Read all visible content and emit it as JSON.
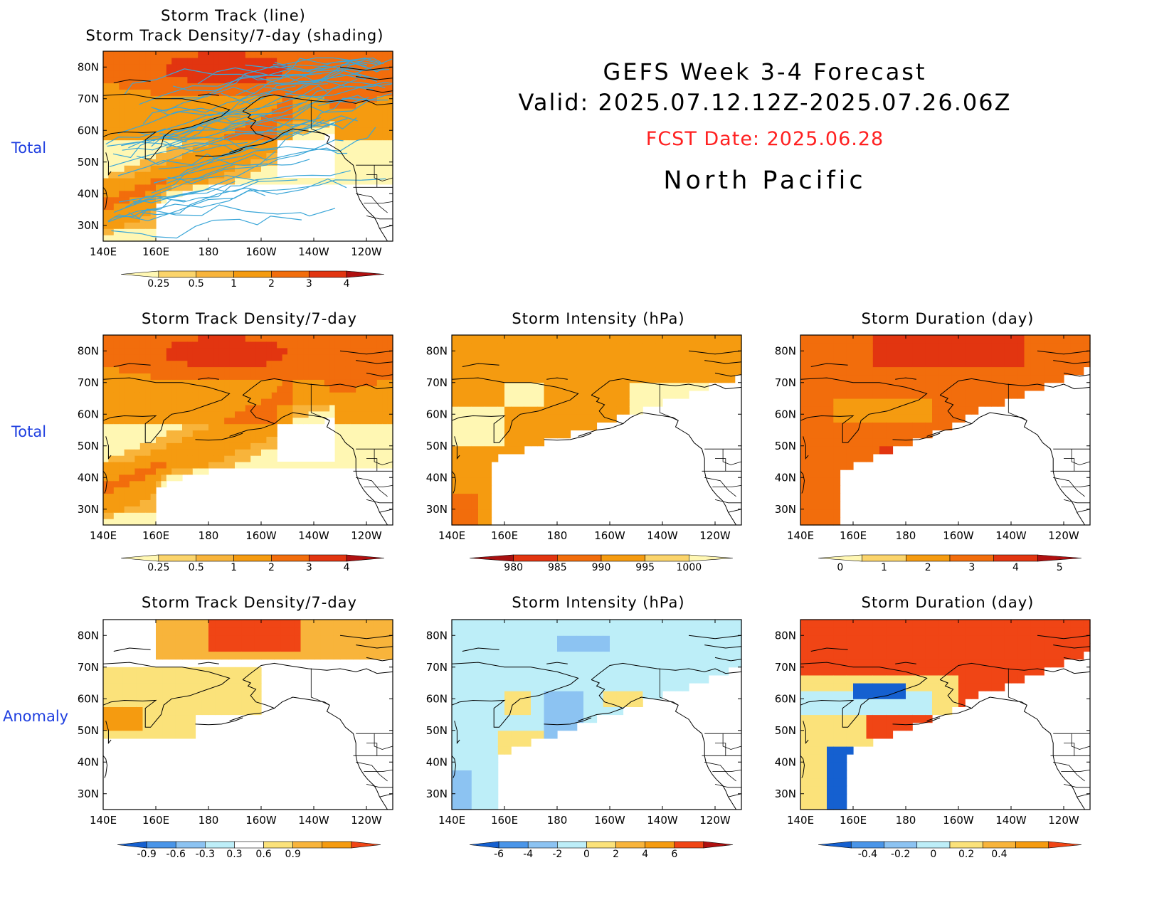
{
  "header": {
    "title": "GEFS Week 3-4 Forecast",
    "valid": "Valid: 2025.07.12.12Z-2025.07.26.06Z",
    "fcst_date": "FCST Date: 2025.06.28",
    "region": "North Pacific",
    "title_color": "#000000",
    "fcst_color": "#ff2020"
  },
  "row_labels": {
    "row0": "Total",
    "row1": "Total",
    "row2": "Anomaly"
  },
  "axes": {
    "lon_ticks": [
      "140E",
      "160E",
      "180",
      "160W",
      "140W",
      "120W"
    ],
    "lat_ticks": [
      "80N",
      "70N",
      "60N",
      "50N",
      "40N",
      "30N"
    ],
    "lon_range": [
      140,
      250
    ],
    "lat_range": [
      25,
      85
    ]
  },
  "panels": {
    "p0": {
      "title_line1": "Storm Track (line)",
      "title_line2": "Storm Track Density/7-day (shading)"
    },
    "p1": {
      "title": "Storm Track Density/7-day"
    },
    "p2": {
      "title": "Storm Intensity (hPa)"
    },
    "p3": {
      "title": "Storm Duration (day)"
    },
    "p4": {
      "title": "Storm Track Density/7-day"
    },
    "p5": {
      "title": "Storm Intensity (hPa)"
    },
    "p6": {
      "title": "Storm Duration (day)"
    }
  },
  "colorbars": {
    "density": {
      "labels": [
        "0.25",
        "0.5",
        "1",
        "2",
        "3",
        "4"
      ],
      "colors": [
        "#fff7b3",
        "#fbd46b",
        "#f8b43b",
        "#f59b10",
        "#f26d0c",
        "#e23510",
        "#b01010"
      ]
    },
    "intensity": {
      "labels": [
        "980",
        "985",
        "990",
        "995",
        "1000"
      ],
      "colors": [
        "#a81010",
        "#e23510",
        "#f26d0c",
        "#f59b10",
        "#fbd46b",
        "#fff7b3"
      ]
    },
    "duration": {
      "labels": [
        "0",
        "1",
        "2",
        "3",
        "4",
        "5"
      ],
      "colors": [
        "#fff7b3",
        "#fbd46b",
        "#f59b10",
        "#f26d0c",
        "#e23510",
        "#b01010"
      ]
    },
    "density_anom": {
      "labels": [
        "-0.9",
        "-0.6",
        "-0.3",
        "0.3",
        "0.6",
        "0.9"
      ],
      "colors": [
        "#1560d0",
        "#4a95e8",
        "#8cc3f2",
        "#bdeef8",
        "#ffffff",
        "#fbe27a",
        "#f8b43b",
        "#f59b10",
        "#f04515"
      ]
    },
    "intensity_anom": {
      "labels": [
        "-6",
        "-4",
        "-2",
        "0",
        "2",
        "4",
        "6"
      ],
      "colors": [
        "#1560d0",
        "#4a95e8",
        "#8cc3f2",
        "#bdeef8",
        "#fbe27a",
        "#f8b43b",
        "#f59b10",
        "#f04515",
        "#b01010"
      ]
    },
    "duration_anom": {
      "labels": [
        "-0.4",
        "-0.2",
        "0",
        "0.2",
        "0.4"
      ],
      "colors": [
        "#1560d0",
        "#4a95e8",
        "#8cc3f2",
        "#bdeef8",
        "#fbe27a",
        "#f8b43b",
        "#f59b10",
        "#f04515"
      ]
    }
  },
  "chart_data": [
    {
      "type": "heatmap",
      "title": "Storm Track (line) / Storm Track Density/7-day (shading)",
      "xrange": [
        140,
        250
      ],
      "yrange": [
        25,
        85
      ],
      "field": "storm track density with track lines",
      "peak_value": 3.5,
      "peak_location": [
        180,
        80
      ]
    },
    {
      "type": "heatmap",
      "title": "Storm Track Density/7-day",
      "xrange": [
        140,
        250
      ],
      "yrange": [
        25,
        85
      ],
      "field": "storm track density",
      "peak_value": 3.5,
      "peak_location": [
        180,
        80
      ]
    },
    {
      "type": "heatmap",
      "title": "Storm Intensity (hPa)",
      "xrange": [
        140,
        250
      ],
      "yrange": [
        25,
        85
      ],
      "field": "storm intensity",
      "typical_value": 995,
      "min_value": 985
    },
    {
      "type": "heatmap",
      "title": "Storm Duration (day)",
      "xrange": [
        140,
        250
      ],
      "yrange": [
        25,
        85
      ],
      "field": "storm duration",
      "typical_value": 3.5,
      "max_value": 4.5
    },
    {
      "type": "heatmap",
      "title": "Storm Track Density/7-day",
      "xrange": [
        140,
        250
      ],
      "yrange": [
        25,
        85
      ],
      "field": "storm track density anomaly",
      "max_value": 0.9,
      "min_value": 0
    },
    {
      "type": "heatmap",
      "title": "Storm Intensity (hPa)",
      "xrange": [
        140,
        250
      ],
      "yrange": [
        25,
        85
      ],
      "field": "storm intensity anomaly",
      "typical_value": -1,
      "min_value": -5,
      "max_value": 3
    },
    {
      "type": "heatmap",
      "title": "Storm Duration (day)",
      "xrange": [
        140,
        250
      ],
      "yrange": [
        25,
        85
      ],
      "field": "storm duration anomaly",
      "max_value": 0.4,
      "min_value": -0.4
    }
  ]
}
